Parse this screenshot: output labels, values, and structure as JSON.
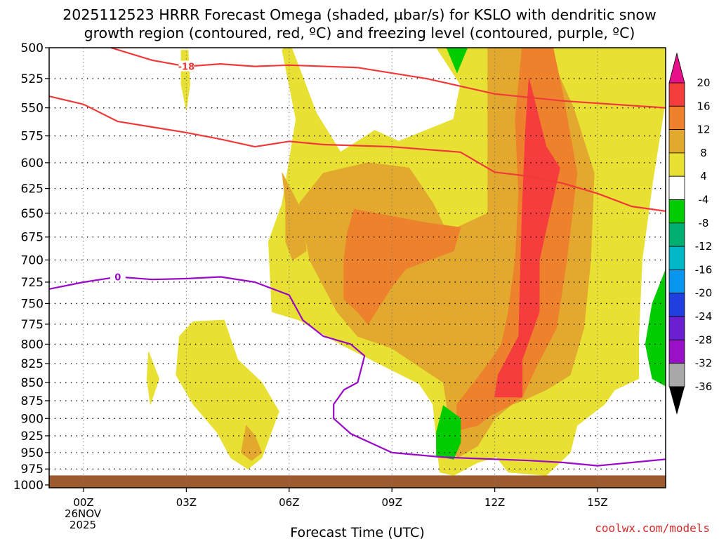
{
  "chart_data": {
    "type": "heatmap",
    "title": "2025112523 HRRR Forecast Omega (shaded, µbar/s) for KSLO with dendritic snow",
    "subtitle": "growth region (contoured, red, ºC) and freezing level (contoured, purple, ºC)",
    "xlabel": "Forecast Time (UTC)",
    "ylabel": "",
    "x_unit": "forecast hour",
    "xlim": [
      -1,
      17
    ],
    "ylim": [
      1000,
      500
    ],
    "y_scale": "log-pressure",
    "grid": true,
    "y_ticks": [
      500,
      525,
      550,
      575,
      600,
      625,
      650,
      675,
      700,
      725,
      750,
      775,
      800,
      825,
      850,
      875,
      900,
      925,
      950,
      975,
      1000
    ],
    "x_ticks": [
      {
        "x": 0,
        "label": "00Z",
        "sub": [
          "26NOV",
          "2025"
        ]
      },
      {
        "x": 3,
        "label": "03Z",
        "sub": []
      },
      {
        "x": 6,
        "label": "06Z",
        "sub": []
      },
      {
        "x": 9,
        "label": "09Z",
        "sub": []
      },
      {
        "x": 12,
        "label": "12Z",
        "sub": []
      },
      {
        "x": 15,
        "label": "15Z",
        "sub": []
      }
    ],
    "colorbar": {
      "levels": [
        "20",
        "16",
        "12",
        "8",
        "4",
        "-4",
        "-8",
        "-12",
        "-16",
        "-20",
        "-24",
        "-28",
        "-32",
        "-36"
      ],
      "top_arrow_color": "#e8108a",
      "bottom_arrow_color": "#000000",
      "bins": [
        {
          "from": 16,
          "to": 20,
          "color": "#f53d3d"
        },
        {
          "from": 12,
          "to": 16,
          "color": "#ed812c"
        },
        {
          "from": 8,
          "to": 12,
          "color": "#e3a92e"
        },
        {
          "from": 4,
          "to": 8,
          "color": "#e8e032"
        },
        {
          "from": -4,
          "to": 4,
          "color": "#ffffff"
        },
        {
          "from": -8,
          "to": -4,
          "color": "#00cc00"
        },
        {
          "from": -12,
          "to": -8,
          "color": "#00b070"
        },
        {
          "from": -16,
          "to": -12,
          "color": "#00b8c8"
        },
        {
          "from": -20,
          "to": -16,
          "color": "#0896f0"
        },
        {
          "from": -24,
          "to": -20,
          "color": "#1f3fe0"
        },
        {
          "from": -28,
          "to": -24,
          "color": "#6a1fd0"
        },
        {
          "from": -32,
          "to": -28,
          "color": "#9a10c8"
        },
        {
          "from": -36,
          "to": -32,
          "color": "#a8a8a8"
        }
      ]
    },
    "shaded_regions": [
      {
        "level": "4 to 8",
        "color": "#e8e032",
        "polygon": [
          [
            9.2,
            580
          ],
          [
            10.8,
            560
          ],
          [
            11,
            530
          ],
          [
            10.3,
            500
          ],
          [
            12.3,
            500
          ],
          [
            12.5,
            550
          ],
          [
            12.4,
            700
          ],
          [
            12.3,
            870
          ],
          [
            12.5,
            950
          ],
          [
            11.5,
            965
          ],
          [
            10.8,
            985
          ],
          [
            10.4,
            980
          ],
          [
            10.3,
            930
          ],
          [
            10.2,
            880
          ],
          [
            9.8,
            852
          ],
          [
            7.5,
            800
          ],
          [
            6.3,
            770
          ],
          [
            5.5,
            760
          ],
          [
            5.4,
            680
          ],
          [
            5.8,
            640
          ],
          [
            6.2,
            560
          ],
          [
            5.8,
            502
          ],
          [
            6,
            495
          ],
          [
            6.8,
            555
          ],
          [
            7.5,
            590
          ],
          [
            8.5,
            570
          ]
        ]
      },
      {
        "level": "4 to 8",
        "color": "#e8e032",
        "polygon": [
          [
            12.3,
            500
          ],
          [
            17,
            500
          ],
          [
            17,
            540
          ],
          [
            16.6,
            620
          ],
          [
            16.3,
            700
          ],
          [
            16.2,
            790
          ],
          [
            16.2,
            845
          ],
          [
            15.5,
            860
          ],
          [
            15.2,
            880
          ],
          [
            14.4,
            910
          ],
          [
            14.2,
            950
          ],
          [
            13.5,
            985
          ],
          [
            12.4,
            980
          ],
          [
            11.8,
            940
          ],
          [
            11.5,
            880
          ],
          [
            11.8,
            850
          ],
          [
            12.3,
            800
          ],
          [
            12.3,
            700
          ],
          [
            12.4,
            600
          ]
        ]
      },
      {
        "level": "4 to 8",
        "color": "#e8e032",
        "polygon": [
          [
            3.2,
            772
          ],
          [
            4.1,
            770
          ],
          [
            4.5,
            820
          ],
          [
            5.2,
            850
          ],
          [
            5.7,
            890
          ],
          [
            5.4,
            930
          ],
          [
            5.2,
            958
          ],
          [
            4.8,
            975
          ],
          [
            4.3,
            958
          ],
          [
            3.9,
            920
          ],
          [
            3.2,
            880
          ],
          [
            2.7,
            840
          ],
          [
            2.8,
            790
          ]
        ]
      },
      {
        "level": "4 to 8",
        "color": "#e8e032",
        "polygon": [
          [
            2.85,
            502
          ],
          [
            3.05,
            502
          ],
          [
            3.1,
            530
          ],
          [
            3.0,
            552
          ],
          [
            2.85,
            530
          ]
        ]
      },
      {
        "level": "4 to 8",
        "color": "#e8e032",
        "polygon": [
          [
            1.9,
            810
          ],
          [
            2.2,
            845
          ],
          [
            1.95,
            880
          ],
          [
            1.85,
            845
          ]
        ]
      },
      {
        "level": "8 to 12",
        "color": "#e3a92e",
        "polygon": [
          [
            11.8,
            500
          ],
          [
            13.5,
            500
          ],
          [
            14.3,
            550
          ],
          [
            14.9,
            610
          ],
          [
            14.8,
            700
          ],
          [
            14.6,
            780
          ],
          [
            14.2,
            840
          ],
          [
            13.5,
            860
          ],
          [
            12.8,
            875
          ],
          [
            12.5,
            880
          ],
          [
            12,
            900
          ],
          [
            11.5,
            940
          ],
          [
            10.9,
            958
          ],
          [
            10.7,
            930
          ],
          [
            10.6,
            880
          ],
          [
            10.5,
            850
          ],
          [
            9.5,
            820
          ],
          [
            9,
            805
          ],
          [
            8,
            790
          ],
          [
            7.4,
            760
          ],
          [
            6.6,
            700
          ],
          [
            6.4,
            660
          ],
          [
            6.3,
            640
          ],
          [
            7,
            610
          ],
          [
            8.3,
            600
          ],
          [
            9.5,
            605
          ],
          [
            10.2,
            640
          ],
          [
            10.6,
            670
          ],
          [
            11.8,
            650
          ]
        ]
      },
      {
        "level": "8 to 12",
        "color": "#e3a92e",
        "polygon": [
          [
            5.8,
            610
          ],
          [
            6.4,
            650
          ],
          [
            6.5,
            690
          ],
          [
            6.1,
            700
          ],
          [
            5.9,
            680
          ],
          [
            5.9,
            640
          ]
        ]
      },
      {
        "level": "8 to 12",
        "color": "#e3a92e",
        "polygon": [
          [
            4.75,
            910
          ],
          [
            5,
            925
          ],
          [
            5.2,
            950
          ],
          [
            4.9,
            962
          ],
          [
            4.6,
            950
          ]
        ]
      },
      {
        "level": "12 to 16",
        "color": "#ed812c",
        "polygon": [
          [
            12.8,
            500
          ],
          [
            13.7,
            500
          ],
          [
            14,
            540
          ],
          [
            14.4,
            610
          ],
          [
            14.1,
            700
          ],
          [
            13.8,
            780
          ],
          [
            13.2,
            830
          ],
          [
            12.8,
            870
          ],
          [
            12.5,
            880
          ],
          [
            11.9,
            895
          ],
          [
            11.5,
            910
          ],
          [
            10.9,
            917
          ],
          [
            10.9,
            880
          ],
          [
            11.4,
            850
          ],
          [
            11.9,
            820
          ],
          [
            12.2,
            800
          ],
          [
            12.4,
            760
          ],
          [
            12.6,
            700
          ],
          [
            12.7,
            630
          ],
          [
            12.6,
            560
          ]
        ]
      },
      {
        "level": "12 to 16",
        "color": "#ed812c",
        "polygon": [
          [
            7.9,
            646
          ],
          [
            10,
            660
          ],
          [
            11,
            665
          ],
          [
            10.8,
            690
          ],
          [
            9.4,
            710
          ],
          [
            9.0,
            730
          ],
          [
            8.3,
            775
          ],
          [
            8,
            760
          ],
          [
            7.6,
            745
          ],
          [
            7.6,
            700
          ],
          [
            7.7,
            670
          ]
        ]
      },
      {
        "level": "16 to 20",
        "color": "#f53d3d",
        "polygon": [
          [
            13.0,
            525
          ],
          [
            13.5,
            585
          ],
          [
            13.9,
            605
          ],
          [
            13.3,
            700
          ],
          [
            13.3,
            760
          ],
          [
            12.8,
            820
          ],
          [
            12.8,
            870
          ],
          [
            12.0,
            870
          ],
          [
            12.1,
            840
          ],
          [
            12.7,
            790
          ],
          [
            12.8,
            650
          ],
          [
            12.9,
            570
          ]
        ]
      },
      {
        "level": "-8 to -4",
        "color": "#00cc00",
        "polygon": [
          [
            10.5,
            882
          ],
          [
            11,
            900
          ],
          [
            11,
            935
          ],
          [
            10.8,
            960
          ],
          [
            10.3,
            955
          ],
          [
            10.3,
            920
          ]
        ]
      },
      {
        "level": "-8 to -4",
        "color": "#00cc00",
        "polygon": [
          [
            17,
            710
          ],
          [
            16.6,
            750
          ],
          [
            16.4,
            800
          ],
          [
            16.6,
            845
          ],
          [
            17,
            855
          ]
        ]
      },
      {
        "level": "-8 to -4",
        "color": "#00cc00",
        "polygon": [
          [
            10.6,
            500
          ],
          [
            11.2,
            500
          ],
          [
            10.9,
            520
          ]
        ]
      }
    ],
    "contour_lines": [
      {
        "variable": "dendritic growth region",
        "color": "#f03a3a",
        "label": "-18",
        "label_at": [
          3,
          515
        ],
        "points": [
          [
            0.8,
            500
          ],
          [
            2,
            510
          ],
          [
            3,
            515
          ],
          [
            4,
            513
          ],
          [
            5,
            515
          ],
          [
            6,
            514
          ],
          [
            8,
            516
          ],
          [
            10,
            525
          ],
          [
            12,
            538
          ],
          [
            14,
            544
          ],
          [
            17,
            550
          ]
        ]
      },
      {
        "variable": "dendritic growth region",
        "color": "#f03a3a",
        "label": "",
        "label_at": null,
        "points": [
          [
            -1,
            540
          ],
          [
            0,
            547
          ],
          [
            1,
            562
          ],
          [
            2,
            567
          ],
          [
            3,
            572
          ],
          [
            4,
            578
          ],
          [
            5,
            585
          ],
          [
            6,
            580
          ],
          [
            7,
            583
          ],
          [
            9,
            585
          ],
          [
            11,
            590
          ],
          [
            12,
            609
          ],
          [
            13,
            613
          ],
          [
            14,
            620
          ],
          [
            15,
            630
          ],
          [
            16,
            643
          ],
          [
            17,
            648
          ]
        ]
      },
      {
        "variable": "freezing level",
        "color": "#9a08c8",
        "label": "0",
        "label_at": [
          1,
          719
        ],
        "points": [
          [
            -1,
            733
          ],
          [
            0,
            725
          ],
          [
            1,
            719
          ],
          [
            2,
            722
          ],
          [
            3,
            721
          ],
          [
            4,
            719
          ],
          [
            5,
            725
          ],
          [
            6,
            740
          ],
          [
            6.4,
            770
          ],
          [
            7,
            790
          ],
          [
            7.8,
            800
          ],
          [
            8.2,
            815
          ],
          [
            8,
            850
          ],
          [
            7.6,
            860
          ],
          [
            7.3,
            880
          ],
          [
            7.3,
            900
          ],
          [
            7.8,
            922
          ],
          [
            9,
            950
          ],
          [
            10.5,
            957
          ],
          [
            12,
            960
          ],
          [
            13,
            962
          ],
          [
            14,
            965
          ],
          [
            15,
            970
          ],
          [
            16,
            965
          ],
          [
            17,
            960
          ]
        ]
      }
    ],
    "ground": {
      "color": "#9c5a2e",
      "from": 985,
      "to": 1000
    }
  },
  "footer": {
    "credit": "coolwx.com/models"
  }
}
